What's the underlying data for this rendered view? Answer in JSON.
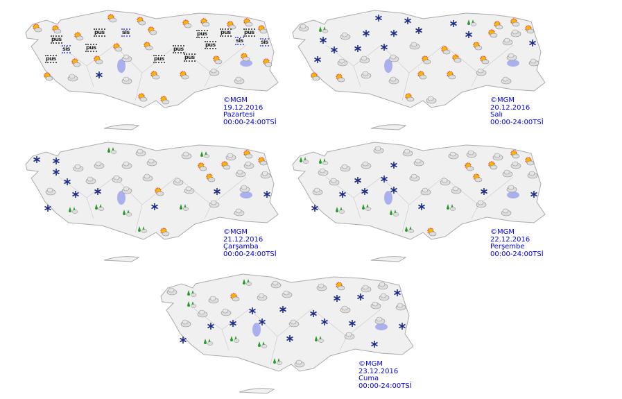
{
  "colors": {
    "land": "#f0f0f0",
    "border": "#aaaaaa",
    "lake": "#aab0ee",
    "label": "#0000ee",
    "snow": "#1a2a8a",
    "rain": "#2a9a2a",
    "sun": "#f5b800"
  },
  "panels": [
    {
      "copyright": "©MGM",
      "date": "19.12.2016",
      "day": "Pazartesi",
      "period": "00:00-24:00TSİ",
      "icons": [
        "sun",
        "sun",
        "sun",
        "sun",
        "sun",
        "sun",
        "sun",
        "sun",
        "sun",
        "pus",
        "sun",
        "pus",
        "sis",
        "sun",
        "pus",
        "pus",
        "pus",
        "sis",
        "pus",
        "sun",
        "sun",
        "pus",
        "pus",
        "sis",
        "sis",
        "pus",
        "sun",
        "sun",
        "cloud",
        "pus",
        "pus",
        "sun",
        "sun",
        "sun",
        "sun",
        "cloud",
        "snow",
        "cloud",
        "sun",
        "sun",
        "cloud",
        "cloud",
        "sun",
        "sun"
      ]
    },
    {
      "copyright": "©MGM",
      "date": "20.12.2016",
      "day": "Salı",
      "period": "00:00-24:00TSİ",
      "icons": [
        "cloud",
        "rain",
        "snow",
        "snow",
        "snow",
        "rain",
        "sun",
        "sun",
        "sun",
        "snow",
        "cloud",
        "snow",
        "snow",
        "snow",
        "snow",
        "sun",
        "cloud",
        "snow",
        "snow",
        "snow",
        "cloud",
        "sun",
        "sun",
        "cloud",
        "snow",
        "snow",
        "cloud",
        "cloud",
        "cloud",
        "sun",
        "sun",
        "sun",
        "cloud",
        "cloud",
        "sun",
        "sun",
        "cloud",
        "cloud",
        "sun",
        "sun",
        "cloud",
        "cloud",
        "sun",
        "cloud"
      ]
    },
    {
      "copyright": "©MGM",
      "date": "21.12.2016",
      "day": "Çarşamba",
      "period": "00:00-24:00TSİ",
      "icons": [
        "snow",
        "snow",
        "rain",
        "cloud",
        "cloud",
        "rain",
        "cloud",
        "sun",
        "sun",
        "snow",
        "cloud",
        "cloud",
        "cloud",
        "cloud",
        "sun",
        "sun",
        "cloud",
        "snow",
        "cloud",
        "cloud",
        "cloud",
        "cloud",
        "sun",
        "cloud",
        "cloud",
        "cloud",
        "snow",
        "snow",
        "cloud",
        "sun",
        "cloud",
        "snow",
        "cloud",
        "snow",
        "snow",
        "rain",
        "rain",
        "rain",
        "snow",
        "rain",
        "cloud",
        "cloud",
        "rain",
        "sun"
      ]
    },
    {
      "copyright": "©MGM",
      "date": "22.12.2016",
      "day": "Perşembe",
      "period": "00:00-24:00TSİ",
      "icons": [
        "rain",
        "rain",
        "cloud",
        "cloud",
        "cloud",
        "cloud",
        "cloud",
        "sun",
        "sun",
        "cloud",
        "cloud",
        "cloud",
        "snow",
        "cloud",
        "sun",
        "sun",
        "cloud",
        "cloud",
        "snow",
        "snow",
        "cloud",
        "cloud",
        "sun",
        "cloud",
        "cloud",
        "cloud",
        "snow",
        "snow",
        "snow",
        "cloud",
        "cloud",
        "snow",
        "cloud",
        "snow",
        "snow",
        "rain",
        "rain",
        "rain",
        "snow",
        "rain",
        "cloud",
        "cloud",
        "rain",
        "sun"
      ]
    },
    {
      "copyright": "©MGM",
      "date": "23.12.2016",
      "day": "Cuma",
      "period": "00:00-24:00TSİ",
      "icons": [
        "cloud",
        "rain",
        "rain",
        "cloud",
        "cloud",
        "sun",
        "cloud",
        "cloud",
        "snow",
        "rain",
        "cloud",
        "sun",
        "cloud",
        "cloud",
        "snow",
        "snow",
        "cloud",
        "cloud",
        "cloud",
        "snow",
        "snow",
        "snow",
        "cloud",
        "cloud",
        "cloud",
        "cloud",
        "snow",
        "snow",
        "snow",
        "cloud",
        "snow",
        "snow",
        "cloud",
        "snow",
        "snow",
        "rain",
        "rain",
        "rain",
        "snow",
        "rain",
        "cloud",
        "snow",
        "rain",
        "cloud"
      ]
    }
  ]
}
